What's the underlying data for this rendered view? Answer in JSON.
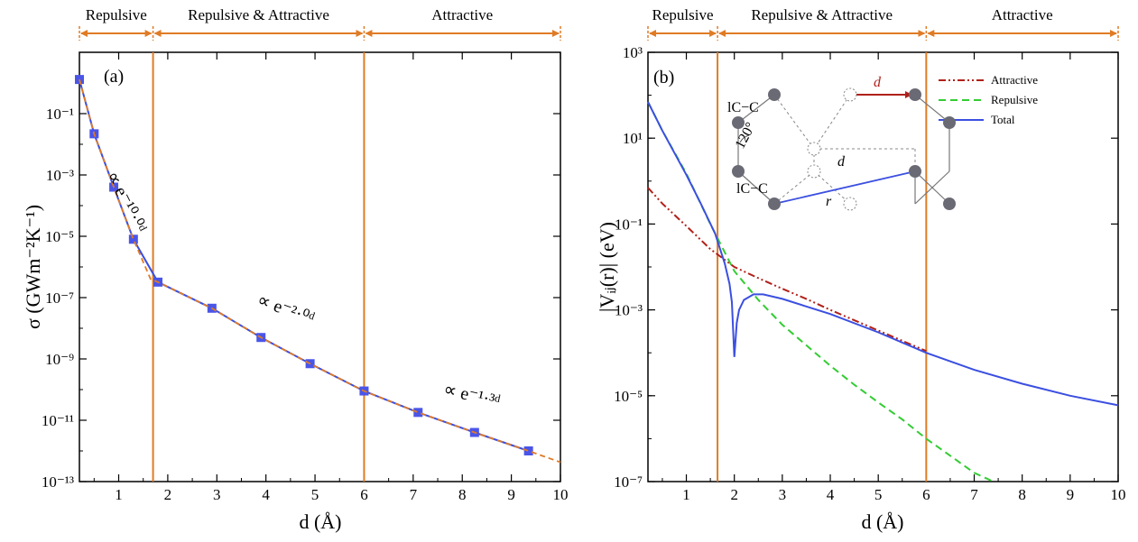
{
  "colors": {
    "orange": "#E07B25",
    "blue": "#3B4FE0",
    "marker": "#4A55E8",
    "attractive": "#B0201A",
    "repulsive": "#33CC33",
    "node": "#6A6A75"
  },
  "chart_data": [
    {
      "id": "a",
      "type": "scatter",
      "panel_label": "(a)",
      "xlabel": "d (Å)",
      "ylabel": "σ (GWm⁻²K⁻¹)",
      "xlim": [
        0.2,
        10
      ],
      "ylim": [
        1e-13,
        10.0
      ],
      "yscale": "log",
      "xticks": [
        "1",
        "2",
        "3",
        "4",
        "5",
        "6",
        "7",
        "8",
        "9",
        "10"
      ],
      "yticks": [
        "10⁻¹³",
        "10⁻¹¹",
        "10⁻⁹",
        "10⁻⁷",
        "10⁻⁵",
        "10⁻³",
        "10⁻¹"
      ],
      "regions": [
        {
          "label": "Repulsive",
          "x0": 0.2,
          "x1": 1.7
        },
        {
          "label": "Repulsive & Attractive",
          "x0": 1.7,
          "x1": 6.0
        },
        {
          "label": "Attractive",
          "x0": 6.0,
          "x1": 10.0
        }
      ],
      "boundaries": [
        1.7,
        6.0
      ],
      "annotations": [
        {
          "text": "∝ e⁻¹⁰·⁰ᵈ",
          "x": 0.75,
          "y": 0.001,
          "rotate": 63
        },
        {
          "text": "∝ e⁻²·⁰ᵈ",
          "x": 3.8,
          "y": 6e-08,
          "rotate": 20
        },
        {
          "text": "∝ e⁻¹·³ᵈ",
          "x": 7.6,
          "y": 7e-11,
          "rotate": 13
        }
      ],
      "series": [
        {
          "kind": "markers-line",
          "x": [
            0.2,
            0.5,
            0.9,
            1.3,
            1.8,
            2.9,
            3.9,
            4.9,
            6.0,
            7.1,
            8.25,
            9.35
          ],
          "values": [
            1.3,
            0.022,
            0.0004,
            8e-06,
            3.2e-07,
            4.5e-08,
            5e-09,
            7e-10,
            9e-11,
            1.8e-11,
            4e-12,
            1e-12
          ]
        },
        {
          "kind": "fit-dashed",
          "x": [
            0.2,
            0.5,
            0.9,
            1.3,
            1.65,
            1.8,
            2.9,
            3.9,
            4.9,
            6.0,
            7.1,
            8.25,
            9.35,
            10.0
          ],
          "values": [
            1.3,
            0.022,
            0.0004,
            8e-06,
            4e-07,
            3.2e-07,
            4.5e-08,
            5e-09,
            7e-10,
            9e-11,
            1.8e-11,
            4e-12,
            1e-12,
            4.3e-13
          ]
        }
      ]
    },
    {
      "id": "b",
      "type": "line",
      "panel_label": "(b)",
      "xlabel": "d (Å)",
      "ylabel": "|Vᵢⱼ(r)| (eV)",
      "xlim": [
        0.2,
        10
      ],
      "ylim": [
        1e-07,
        1000.0
      ],
      "yscale": "log",
      "xticks": [
        "1",
        "2",
        "3",
        "4",
        "5",
        "6",
        "7",
        "8",
        "9",
        "10"
      ],
      "yticks": [
        "10⁻⁷",
        "10⁻⁵",
        "10⁻³",
        "10⁻¹",
        "10¹",
        "10³"
      ],
      "regions": [
        {
          "label": "Repulsive",
          "x0": 0.2,
          "x1": 1.65
        },
        {
          "label": "Repulsive & Attractive",
          "x0": 1.65,
          "x1": 6.0
        },
        {
          "label": "Attractive",
          "x0": 6.0,
          "x1": 10.0
        }
      ],
      "boundaries": [
        1.65,
        6.0
      ],
      "legend": {
        "position": "top-right",
        "entries": [
          "Attractive",
          "Repulsive",
          "Total"
        ]
      },
      "inset": {
        "labels": {
          "d_top": "d",
          "d_mid": "d",
          "lcc_top": "lC−C",
          "lcc_bottom": "lC−C",
          "angle": "120°",
          "r": "r"
        }
      },
      "series": [
        {
          "name": "Attractive",
          "style": "dash-dot-dot",
          "x": [
            0.2,
            0.5,
            1.0,
            1.5,
            2.0,
            2.5,
            3.0,
            3.5,
            4.0,
            5.0,
            6.0
          ],
          "values": [
            0.7,
            0.3,
            0.09,
            0.026,
            0.01,
            0.0055,
            0.0031,
            0.0018,
            0.001,
            0.00033,
            0.00011
          ]
        },
        {
          "name": "Repulsive",
          "style": "dashed",
          "x": [
            0.2,
            0.5,
            1.0,
            1.5,
            2.0,
            2.5,
            3.0,
            3.5,
            4.0,
            4.5,
            5.0,
            5.5,
            6.0,
            6.5,
            7.0,
            7.4
          ],
          "values": [
            70,
            15,
            1.5,
            0.1,
            0.008,
            0.0017,
            0.00045,
            0.00015,
            5e-05,
            1.8e-05,
            7e-06,
            2.8e-06,
            1e-06,
            4e-07,
            1.6e-07,
            9e-08
          ]
        },
        {
          "name": "Total",
          "style": "solid",
          "x": [
            0.2,
            0.5,
            1.0,
            1.3,
            1.6,
            1.8,
            1.9,
            1.95,
            2.0,
            2.05,
            2.1,
            2.2,
            2.4,
            2.6,
            3.0,
            3.5,
            4.0,
            5.0,
            6.0,
            7.0,
            8.0,
            9.0,
            10.0
          ],
          "values": [
            70,
            15,
            1.4,
            0.3,
            0.06,
            0.012,
            0.004,
            0.0015,
            8e-05,
            0.0005,
            0.001,
            0.0017,
            0.0023,
            0.0023,
            0.0018,
            0.0012,
            0.0008,
            0.0003,
            0.0001,
            4e-05,
            1.9e-05,
            1e-05,
            6e-06
          ]
        }
      ]
    }
  ]
}
